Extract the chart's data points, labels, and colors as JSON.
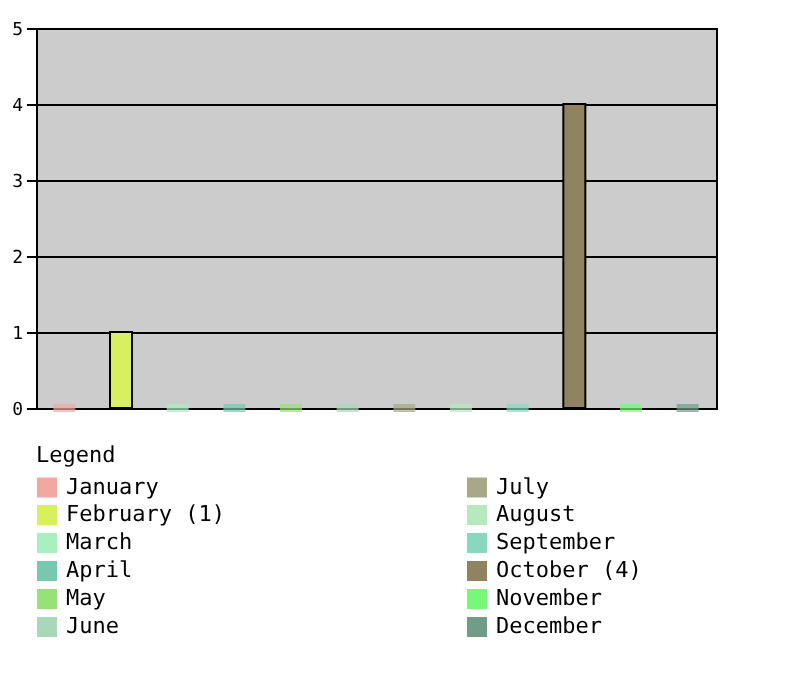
{
  "chart_data": {
    "type": "bar",
    "categories": [
      null,
      null,
      null,
      null,
      null,
      null,
      null,
      null,
      null,
      null,
      null,
      null
    ],
    "series": [
      {
        "name": "January",
        "color": "#f0a8a0",
        "values": [
          0,
          null,
          null,
          null,
          null,
          null,
          null,
          null,
          null,
          null,
          null,
          null
        ]
      },
      {
        "name": "February (1)",
        "color": "#d8f060",
        "values": [
          null,
          1,
          null,
          null,
          null,
          null,
          null,
          null,
          null,
          null,
          null,
          null
        ]
      },
      {
        "name": "March",
        "color": "#a8f0c0",
        "values": [
          null,
          null,
          0,
          null,
          null,
          null,
          null,
          null,
          null,
          null,
          null,
          null
        ]
      },
      {
        "name": "April",
        "color": "#78c8b0",
        "values": [
          null,
          null,
          null,
          0,
          null,
          null,
          null,
          null,
          null,
          null,
          null,
          null
        ]
      },
      {
        "name": "May",
        "color": "#98e078",
        "values": [
          null,
          null,
          null,
          null,
          0,
          null,
          null,
          null,
          null,
          null,
          null,
          null
        ]
      },
      {
        "name": "June",
        "color": "#a8d8b8",
        "values": [
          null,
          null,
          null,
          null,
          null,
          0,
          null,
          null,
          null,
          null,
          null,
          null
        ]
      },
      {
        "name": "July",
        "color": "#a8a888",
        "values": [
          null,
          null,
          null,
          null,
          null,
          null,
          0,
          null,
          null,
          null,
          null,
          null
        ]
      },
      {
        "name": "August",
        "color": "#b8e8c0",
        "values": [
          null,
          null,
          null,
          null,
          null,
          null,
          null,
          0,
          null,
          null,
          null,
          null
        ]
      },
      {
        "name": "September",
        "color": "#88d8c0",
        "values": [
          null,
          null,
          null,
          null,
          null,
          null,
          null,
          null,
          0,
          null,
          null,
          null
        ]
      },
      {
        "name": "October (4)",
        "color": "#908460",
        "values": [
          null,
          null,
          null,
          null,
          null,
          null,
          null,
          null,
          null,
          4,
          null,
          null
        ]
      },
      {
        "name": "November",
        "color": "#78f878",
        "values": [
          null,
          null,
          null,
          null,
          null,
          null,
          null,
          null,
          null,
          null,
          0,
          null
        ]
      },
      {
        "name": "December",
        "color": "#709c88",
        "values": [
          null,
          null,
          null,
          null,
          null,
          null,
          null,
          null,
          null,
          null,
          null,
          0
        ]
      }
    ],
    "legend_title": "Legend",
    "legend": "bottom",
    "ylim": [
      0,
      5
    ],
    "yticks": [
      0,
      1,
      2,
      3,
      4,
      5
    ],
    "grid": "y",
    "tick_labels": "y"
  }
}
